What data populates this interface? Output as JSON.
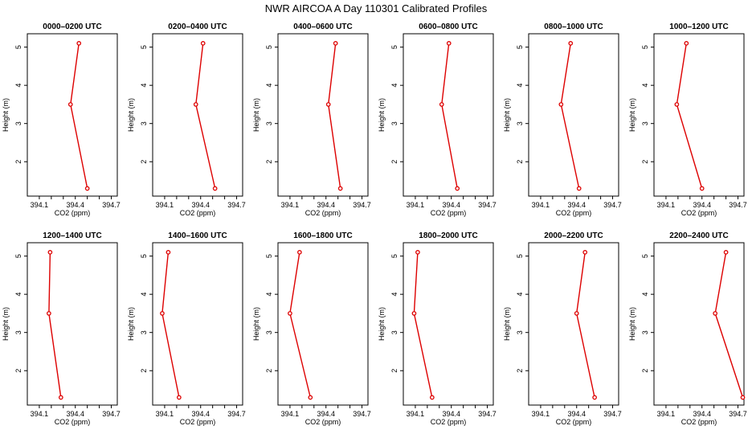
{
  "title": "NWR AIRCOA A  Day 110301  Calibrated Profiles",
  "colors": {
    "line": "#dd0000",
    "axis": "#000000",
    "background": "#ffffff"
  },
  "chart_data": {
    "type": "line",
    "xlabel": "CO2 (ppm)",
    "ylabel": "Height (m)",
    "xlim": [
      394.0,
      394.75
    ],
    "ylim": [
      1.1,
      5.35
    ],
    "xticks": [
      394.1,
      394.2,
      394.3,
      394.4,
      394.5,
      394.6,
      394.7
    ],
    "xtick_labels": [
      "394.1",
      "",
      "",
      "394.4",
      "",
      "",
      "394.7"
    ],
    "yticks": [
      2,
      3,
      4,
      5
    ],
    "ytick_labels": [
      "2",
      "3",
      "4",
      "5"
    ],
    "heights": [
      5.1,
      3.5,
      1.3
    ],
    "panels": [
      {
        "title": "0000–0200 UTC",
        "co2": [
          394.43,
          394.36,
          394.5
        ]
      },
      {
        "title": "0200–0400 UTC",
        "co2": [
          394.42,
          394.36,
          394.52
        ]
      },
      {
        "title": "0400–0600 UTC",
        "co2": [
          394.48,
          394.42,
          394.52
        ]
      },
      {
        "title": "0600–0800 UTC",
        "co2": [
          394.38,
          394.32,
          394.45
        ]
      },
      {
        "title": "0800–1000 UTC",
        "co2": [
          394.35,
          394.27,
          394.42
        ]
      },
      {
        "title": "1000–1200 UTC",
        "co2": [
          394.27,
          394.19,
          394.4
        ]
      },
      {
        "title": "1200–1400 UTC",
        "co2": [
          394.19,
          394.18,
          394.28
        ]
      },
      {
        "title": "1400–1600 UTC",
        "co2": [
          394.13,
          394.08,
          394.22
        ]
      },
      {
        "title": "1600–1800 UTC",
        "co2": [
          394.18,
          394.1,
          394.27
        ]
      },
      {
        "title": "1800–2000 UTC",
        "co2": [
          394.12,
          394.09,
          394.24
        ]
      },
      {
        "title": "2000–2200 UTC",
        "co2": [
          394.47,
          394.4,
          394.55
        ]
      },
      {
        "title": "2200–2400 UTC",
        "co2": [
          394.6,
          394.51,
          394.74
        ]
      }
    ]
  }
}
